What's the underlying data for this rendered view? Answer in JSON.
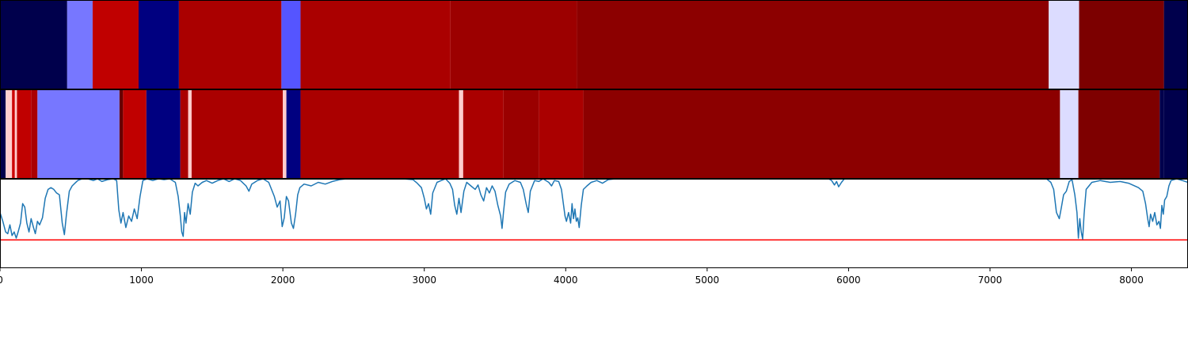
{
  "chart_data": {
    "type": "heatmap",
    "xlim": [
      0,
      8400
    ],
    "x_ticks": [
      0,
      1000,
      2000,
      3000,
      4000,
      5000,
      6000,
      7000,
      8000
    ],
    "x_tick_labels": [
      "0",
      "1000",
      "2000",
      "3000",
      "4000",
      "5000",
      "6000",
      "7000",
      "8000"
    ],
    "rows": [
      {
        "segments": [
          {
            "start": 0,
            "end": 475,
            "color": "#00004c"
          },
          {
            "start": 475,
            "end": 655,
            "color": "#7777ff"
          },
          {
            "start": 655,
            "end": 980,
            "color": "#c00000"
          },
          {
            "start": 980,
            "end": 1265,
            "color": "#000080"
          },
          {
            "start": 1265,
            "end": 1990,
            "color": "#aa0000"
          },
          {
            "start": 1990,
            "end": 2125,
            "color": "#5555ff"
          },
          {
            "start": 2125,
            "end": 3185,
            "color": "#aa0000"
          },
          {
            "start": 3185,
            "end": 4080,
            "color": "#9c0000"
          },
          {
            "start": 4080,
            "end": 7415,
            "color": "#8c0000"
          },
          {
            "start": 7415,
            "end": 7630,
            "color": "#dcdcff"
          },
          {
            "start": 7630,
            "end": 8230,
            "color": "#7c0000"
          },
          {
            "start": 8230,
            "end": 8400,
            "color": "#00004c"
          }
        ]
      },
      {
        "segments": [
          {
            "start": 0,
            "end": 40,
            "color": "#00004c"
          },
          {
            "start": 40,
            "end": 85,
            "color": "#ffd0d0"
          },
          {
            "start": 85,
            "end": 105,
            "color": "#cc0000"
          },
          {
            "start": 105,
            "end": 120,
            "color": "#ffcccc"
          },
          {
            "start": 120,
            "end": 220,
            "color": "#c00000"
          },
          {
            "start": 220,
            "end": 265,
            "color": "#aa0000"
          },
          {
            "start": 265,
            "end": 845,
            "color": "#7777ff"
          },
          {
            "start": 845,
            "end": 870,
            "color": "#660000"
          },
          {
            "start": 870,
            "end": 1035,
            "color": "#c00000"
          },
          {
            "start": 1035,
            "end": 1275,
            "color": "#000080"
          },
          {
            "start": 1275,
            "end": 1330,
            "color": "#aa0000"
          },
          {
            "start": 1330,
            "end": 1355,
            "color": "#ffcccc"
          },
          {
            "start": 1355,
            "end": 2000,
            "color": "#aa0000"
          },
          {
            "start": 2000,
            "end": 2025,
            "color": "#ffcccc"
          },
          {
            "start": 2025,
            "end": 2125,
            "color": "#000080"
          },
          {
            "start": 2125,
            "end": 3245,
            "color": "#aa0000"
          },
          {
            "start": 3245,
            "end": 3275,
            "color": "#ffcccc"
          },
          {
            "start": 3275,
            "end": 3560,
            "color": "#aa0000"
          },
          {
            "start": 3560,
            "end": 3810,
            "color": "#9a0000"
          },
          {
            "start": 3810,
            "end": 4125,
            "color": "#aa0000"
          },
          {
            "start": 4125,
            "end": 7495,
            "color": "#8c0000"
          },
          {
            "start": 7495,
            "end": 7625,
            "color": "#dcdcff"
          },
          {
            "start": 7625,
            "end": 8200,
            "color": "#7e0000"
          },
          {
            "start": 8200,
            "end": 8230,
            "color": "#00004c"
          },
          {
            "start": 8230,
            "end": 8400,
            "color": "#00004c"
          }
        ]
      }
    ],
    "line": {
      "color": "#1f77b4",
      "ylim": [
        0,
        1
      ],
      "threshold": {
        "y": 0.31,
        "color": "#ff0000"
      },
      "points": [
        [
          0,
          0.62
        ],
        [
          20,
          0.52
        ],
        [
          40,
          0.4
        ],
        [
          55,
          0.38
        ],
        [
          70,
          0.48
        ],
        [
          85,
          0.36
        ],
        [
          100,
          0.4
        ],
        [
          115,
          0.33
        ],
        [
          130,
          0.41
        ],
        [
          145,
          0.5
        ],
        [
          160,
          0.72
        ],
        [
          175,
          0.68
        ],
        [
          190,
          0.5
        ],
        [
          205,
          0.4
        ],
        [
          220,
          0.55
        ],
        [
          235,
          0.46
        ],
        [
          250,
          0.38
        ],
        [
          265,
          0.52
        ],
        [
          280,
          0.48
        ],
        [
          300,
          0.56
        ],
        [
          320,
          0.78
        ],
        [
          340,
          0.88
        ],
        [
          360,
          0.9
        ],
        [
          380,
          0.88
        ],
        [
          400,
          0.84
        ],
        [
          420,
          0.82
        ],
        [
          440,
          0.5
        ],
        [
          455,
          0.37
        ],
        [
          470,
          0.6
        ],
        [
          490,
          0.86
        ],
        [
          510,
          0.92
        ],
        [
          530,
          0.95
        ],
        [
          550,
          0.98
        ],
        [
          580,
          1.0
        ],
        [
          620,
          1.0
        ],
        [
          660,
          0.98
        ],
        [
          690,
          1.0
        ],
        [
          720,
          0.97
        ],
        [
          760,
          0.99
        ],
        [
          800,
          1.0
        ],
        [
          825,
          0.98
        ],
        [
          840,
          0.65
        ],
        [
          855,
          0.5
        ],
        [
          870,
          0.62
        ],
        [
          890,
          0.45
        ],
        [
          910,
          0.58
        ],
        [
          930,
          0.52
        ],
        [
          950,
          0.66
        ],
        [
          970,
          0.55
        ],
        [
          990,
          0.8
        ],
        [
          1010,
          0.98
        ],
        [
          1040,
          1.0
        ],
        [
          1080,
          0.98
        ],
        [
          1120,
          1.0
        ],
        [
          1160,
          0.99
        ],
        [
          1200,
          1.0
        ],
        [
          1240,
          0.96
        ],
        [
          1260,
          0.8
        ],
        [
          1275,
          0.58
        ],
        [
          1285,
          0.4
        ],
        [
          1295,
          0.35
        ],
        [
          1305,
          0.62
        ],
        [
          1315,
          0.5
        ],
        [
          1330,
          0.72
        ],
        [
          1345,
          0.6
        ],
        [
          1360,
          0.85
        ],
        [
          1380,
          0.95
        ],
        [
          1400,
          0.92
        ],
        [
          1430,
          0.96
        ],
        [
          1460,
          0.98
        ],
        [
          1500,
          0.95
        ],
        [
          1540,
          0.98
        ],
        [
          1580,
          1.0
        ],
        [
          1620,
          0.97
        ],
        [
          1660,
          1.0
        ],
        [
          1700,
          0.98
        ],
        [
          1740,
          0.92
        ],
        [
          1760,
          0.86
        ],
        [
          1780,
          0.94
        ],
        [
          1820,
          0.98
        ],
        [
          1860,
          1.0
        ],
        [
          1900,
          0.96
        ],
        [
          1940,
          0.8
        ],
        [
          1960,
          0.68
        ],
        [
          1980,
          0.75
        ],
        [
          1995,
          0.46
        ],
        [
          2010,
          0.56
        ],
        [
          2025,
          0.8
        ],
        [
          2040,
          0.75
        ],
        [
          2060,
          0.5
        ],
        [
          2075,
          0.44
        ],
        [
          2090,
          0.6
        ],
        [
          2105,
          0.82
        ],
        [
          2120,
          0.9
        ],
        [
          2150,
          0.94
        ],
        [
          2200,
          0.92
        ],
        [
          2250,
          0.96
        ],
        [
          2300,
          0.94
        ],
        [
          2350,
          0.97
        ],
        [
          2400,
          0.99
        ],
        [
          2450,
          1.0
        ],
        [
          2550,
          1.0
        ],
        [
          2650,
          1.0
        ],
        [
          2750,
          1.0
        ],
        [
          2850,
          1.0
        ],
        [
          2920,
          0.99
        ],
        [
          2950,
          0.95
        ],
        [
          2980,
          0.9
        ],
        [
          3000,
          0.78
        ],
        [
          3015,
          0.66
        ],
        [
          3030,
          0.72
        ],
        [
          3045,
          0.6
        ],
        [
          3060,
          0.84
        ],
        [
          3090,
          0.96
        ],
        [
          3120,
          0.98
        ],
        [
          3150,
          1.0
        ],
        [
          3180,
          0.95
        ],
        [
          3200,
          0.88
        ],
        [
          3215,
          0.7
        ],
        [
          3230,
          0.6
        ],
        [
          3245,
          0.78
        ],
        [
          3260,
          0.62
        ],
        [
          3280,
          0.86
        ],
        [
          3300,
          0.96
        ],
        [
          3330,
          0.92
        ],
        [
          3360,
          0.88
        ],
        [
          3380,
          0.93
        ],
        [
          3400,
          0.82
        ],
        [
          3420,
          0.75
        ],
        [
          3440,
          0.9
        ],
        [
          3460,
          0.84
        ],
        [
          3480,
          0.92
        ],
        [
          3500,
          0.86
        ],
        [
          3520,
          0.7
        ],
        [
          3540,
          0.58
        ],
        [
          3550,
          0.44
        ],
        [
          3560,
          0.62
        ],
        [
          3575,
          0.85
        ],
        [
          3600,
          0.94
        ],
        [
          3640,
          0.98
        ],
        [
          3680,
          0.96
        ],
        [
          3700,
          0.88
        ],
        [
          3720,
          0.72
        ],
        [
          3735,
          0.62
        ],
        [
          3750,
          0.86
        ],
        [
          3780,
          0.98
        ],
        [
          3810,
          0.97
        ],
        [
          3840,
          1.0
        ],
        [
          3880,
          0.96
        ],
        [
          3900,
          0.92
        ],
        [
          3920,
          0.98
        ],
        [
          3950,
          0.97
        ],
        [
          3970,
          0.88
        ],
        [
          3985,
          0.7
        ],
        [
          3995,
          0.58
        ],
        [
          4005,
          0.52
        ],
        [
          4020,
          0.62
        ],
        [
          4035,
          0.5
        ],
        [
          4045,
          0.72
        ],
        [
          4055,
          0.55
        ],
        [
          4065,
          0.66
        ],
        [
          4075,
          0.52
        ],
        [
          4085,
          0.56
        ],
        [
          4095,
          0.45
        ],
        [
          4110,
          0.7
        ],
        [
          4125,
          0.88
        ],
        [
          4150,
          0.92
        ],
        [
          4180,
          0.96
        ],
        [
          4220,
          0.98
        ],
        [
          4260,
          0.95
        ],
        [
          4300,
          0.99
        ],
        [
          4350,
          1.0
        ],
        [
          4500,
          1.0
        ],
        [
          4700,
          1.0
        ],
        [
          4900,
          1.0
        ],
        [
          5100,
          1.0
        ],
        [
          5300,
          1.0
        ],
        [
          5500,
          1.0
        ],
        [
          5700,
          1.0
        ],
        [
          5860,
          1.0
        ],
        [
          5880,
          0.98
        ],
        [
          5900,
          0.93
        ],
        [
          5915,
          0.97
        ],
        [
          5930,
          0.91
        ],
        [
          5950,
          0.96
        ],
        [
          5970,
          1.0
        ],
        [
          6100,
          1.0
        ],
        [
          6300,
          1.0
        ],
        [
          6500,
          1.0
        ],
        [
          6700,
          1.0
        ],
        [
          6900,
          1.0
        ],
        [
          7100,
          1.0
        ],
        [
          7300,
          1.0
        ],
        [
          7400,
          1.0
        ],
        [
          7430,
          0.96
        ],
        [
          7450,
          0.88
        ],
        [
          7470,
          0.62
        ],
        [
          7490,
          0.55
        ],
        [
          7505,
          0.68
        ],
        [
          7520,
          0.82
        ],
        [
          7540,
          0.86
        ],
        [
          7560,
          0.97
        ],
        [
          7580,
          0.99
        ],
        [
          7600,
          0.82
        ],
        [
          7615,
          0.62
        ],
        [
          7625,
          0.33
        ],
        [
          7635,
          0.55
        ],
        [
          7645,
          0.4
        ],
        [
          7655,
          0.32
        ],
        [
          7665,
          0.6
        ],
        [
          7680,
          0.88
        ],
        [
          7720,
          0.96
        ],
        [
          7780,
          0.98
        ],
        [
          7850,
          0.96
        ],
        [
          7920,
          0.97
        ],
        [
          7980,
          0.95
        ],
        [
          8050,
          0.9
        ],
        [
          8080,
          0.86
        ],
        [
          8100,
          0.72
        ],
        [
          8115,
          0.55
        ],
        [
          8125,
          0.46
        ],
        [
          8135,
          0.6
        ],
        [
          8150,
          0.52
        ],
        [
          8165,
          0.62
        ],
        [
          8180,
          0.48
        ],
        [
          8195,
          0.52
        ],
        [
          8205,
          0.44
        ],
        [
          8215,
          0.7
        ],
        [
          8225,
          0.6
        ],
        [
          8235,
          0.76
        ],
        [
          8250,
          0.8
        ],
        [
          8265,
          0.92
        ],
        [
          8280,
          0.98
        ],
        [
          8320,
          1.0
        ],
        [
          8360,
          0.98
        ],
        [
          8400,
          0.96
        ]
      ]
    }
  }
}
